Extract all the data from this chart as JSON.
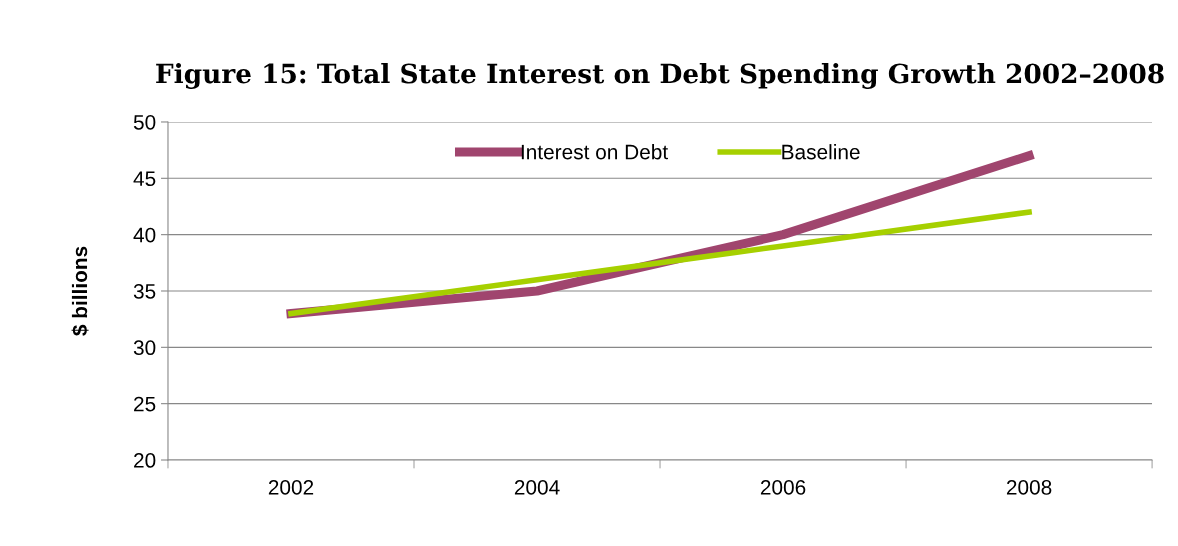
{
  "chart_data": {
    "type": "line",
    "title": "Figure 15: Total State Interest on Debt Spending Growth 2002–2008",
    "ylabel": "$ billions",
    "categories": [
      "2002",
      "2004",
      "2006",
      "2008"
    ],
    "series": [
      {
        "name": "Interest on Debt",
        "color": "#a0456e",
        "values": [
          33,
          35,
          40,
          47
        ]
      },
      {
        "name": "Baseline",
        "color": "#a6d000",
        "values": [
          33,
          36,
          39,
          42
        ]
      }
    ],
    "ylim": [
      20,
      50
    ],
    "yticks": [
      20,
      25,
      30,
      35,
      40,
      45,
      50
    ],
    "grid": "y",
    "legend": "top",
    "marker": "none",
    "line_style": "solid"
  }
}
